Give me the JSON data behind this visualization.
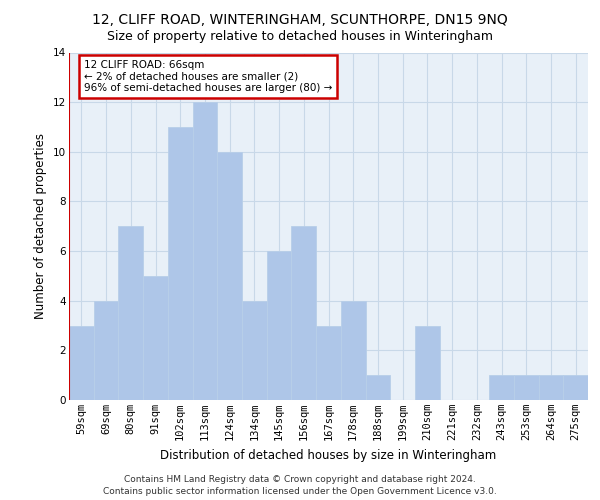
{
  "title": "12, CLIFF ROAD, WINTERINGHAM, SCUNTHORPE, DN15 9NQ",
  "subtitle": "Size of property relative to detached houses in Winteringham",
  "xlabel": "Distribution of detached houses by size in Winteringham",
  "ylabel": "Number of detached properties",
  "bin_labels": [
    "59sqm",
    "69sqm",
    "80sqm",
    "91sqm",
    "102sqm",
    "113sqm",
    "124sqm",
    "134sqm",
    "145sqm",
    "156sqm",
    "167sqm",
    "178sqm",
    "188sqm",
    "199sqm",
    "210sqm",
    "221sqm",
    "232sqm",
    "243sqm",
    "253sqm",
    "264sqm",
    "275sqm"
  ],
  "bar_values": [
    3,
    4,
    7,
    5,
    11,
    12,
    10,
    4,
    6,
    7,
    3,
    4,
    1,
    0,
    3,
    0,
    0,
    1,
    1,
    1,
    1
  ],
  "bar_color": "#aec6e8",
  "bar_edge_color": "#b8cfe8",
  "grid_color": "#c8d8e8",
  "background_color": "#e8f0f8",
  "annotation_text": "12 CLIFF ROAD: 66sqm\n← 2% of detached houses are smaller (2)\n96% of semi-detached houses are larger (80) →",
  "annotation_box_color": "#ffffff",
  "annotation_box_edge_color": "#cc0000",
  "red_line_x": -0.5,
  "ylim": [
    0,
    14
  ],
  "yticks": [
    0,
    2,
    4,
    6,
    8,
    10,
    12,
    14
  ],
  "footer_text": "Contains HM Land Registry data © Crown copyright and database right 2024.\nContains public sector information licensed under the Open Government Licence v3.0.",
  "title_fontsize": 10,
  "subtitle_fontsize": 9,
  "axis_label_fontsize": 8.5,
  "tick_fontsize": 7.5,
  "annotation_fontsize": 7.5,
  "footer_fontsize": 6.5
}
